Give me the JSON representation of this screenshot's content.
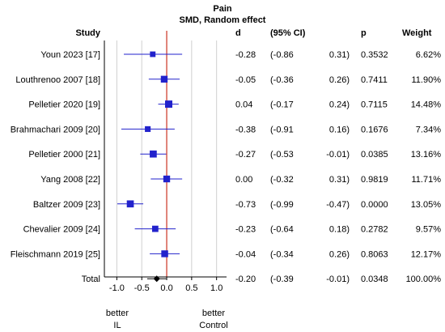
{
  "chart_data": {
    "type": "forest",
    "title": "Pain",
    "subtitle": "SMD, Random effect",
    "headers": {
      "study": "Study",
      "d": "d",
      "ci": "(95% CI)",
      "p": "p",
      "weight": "Weight"
    },
    "studies": [
      {
        "name": "Youn 2023 [17]",
        "d": -0.28,
        "d_text": "-0.28",
        "lo": -0.86,
        "lo_text": "(-0.86",
        "hi": 0.31,
        "hi_text": "0.31)",
        "p": "0.3532",
        "weight": "6.62%",
        "weight_value": 6.62
      },
      {
        "name": "Louthrenoo 2007 [18]",
        "d": -0.05,
        "d_text": "-0.05",
        "lo": -0.36,
        "lo_text": "(-0.36",
        "hi": 0.26,
        "hi_text": "0.26)",
        "p": "0.7411",
        "weight": "11.90%",
        "weight_value": 11.9
      },
      {
        "name": "Pelletier 2020 [19]",
        "d": 0.04,
        "d_text": "0.04",
        "lo": -0.17,
        "lo_text": "(-0.17",
        "hi": 0.24,
        "hi_text": "0.24)",
        "p": "0.7115",
        "weight": "14.48%",
        "weight_value": 14.48
      },
      {
        "name": "Brahmachari 2009 [20]",
        "d": -0.38,
        "d_text": "-0.38",
        "lo": -0.91,
        "lo_text": "(-0.91",
        "hi": 0.16,
        "hi_text": "0.16)",
        "p": "0.1676",
        "weight": "7.34%",
        "weight_value": 7.34
      },
      {
        "name": "Pelletier 2000 [21]",
        "d": -0.27,
        "d_text": "-0.27",
        "lo": -0.53,
        "lo_text": "(-0.53",
        "hi": -0.01,
        "hi_text": "-0.01)",
        "p": "0.0385",
        "weight": "13.16%",
        "weight_value": 13.16
      },
      {
        "name": "Yang 2008 [22]",
        "d": 0.0,
        "d_text": "0.00",
        "lo": -0.32,
        "lo_text": "(-0.32",
        "hi": 0.31,
        "hi_text": "0.31)",
        "p": "0.9819",
        "weight": "11.71%",
        "weight_value": 11.71
      },
      {
        "name": "Baltzer 2009 [23]",
        "d": -0.73,
        "d_text": "-0.73",
        "lo": -0.99,
        "lo_text": "(-0.99",
        "hi": -0.47,
        "hi_text": "-0.47)",
        "p": "0.0000",
        "weight": "13.05%",
        "weight_value": 13.05
      },
      {
        "name": "Chevalier 2009 [24]",
        "d": -0.23,
        "d_text": "-0.23",
        "lo": -0.64,
        "lo_text": "(-0.64",
        "hi": 0.18,
        "hi_text": "0.18)",
        "p": "0.2782",
        "weight": "9.57%",
        "weight_value": 9.57
      },
      {
        "name": "Fleischmann 2019 [25]",
        "d": -0.04,
        "d_text": "-0.04",
        "lo": -0.34,
        "lo_text": "(-0.34",
        "hi": 0.26,
        "hi_text": "0.26)",
        "p": "0.8063",
        "weight": "12.17%",
        "weight_value": 12.17
      }
    ],
    "total": {
      "name": "Total",
      "d": -0.2,
      "d_text": "-0.20",
      "lo": -0.39,
      "lo_text": "(-0.39",
      "hi": -0.01,
      "hi_text": "-0.01)",
      "p": "0.0348",
      "weight": "100.00%"
    },
    "xlim": [
      -1.25,
      1.2
    ],
    "ticks": [
      -1.0,
      -0.5,
      0.0,
      0.5,
      1.0
    ],
    "tick_labels": [
      "-1.0",
      "-0.5",
      "0.0",
      "0.5",
      "1.0"
    ],
    "gridlines": [
      -1.0,
      -0.5,
      0.5,
      1.0
    ],
    "favours_left": [
      "better",
      "IL"
    ],
    "favours_right": [
      "better",
      "Control"
    ],
    "colors": {
      "point": "#2222cc",
      "ci_line": "#2222cc",
      "total_marker": "#000000",
      "null_line": "#cc3322",
      "grid": "#d0d0d0",
      "axis": "#000000"
    }
  }
}
